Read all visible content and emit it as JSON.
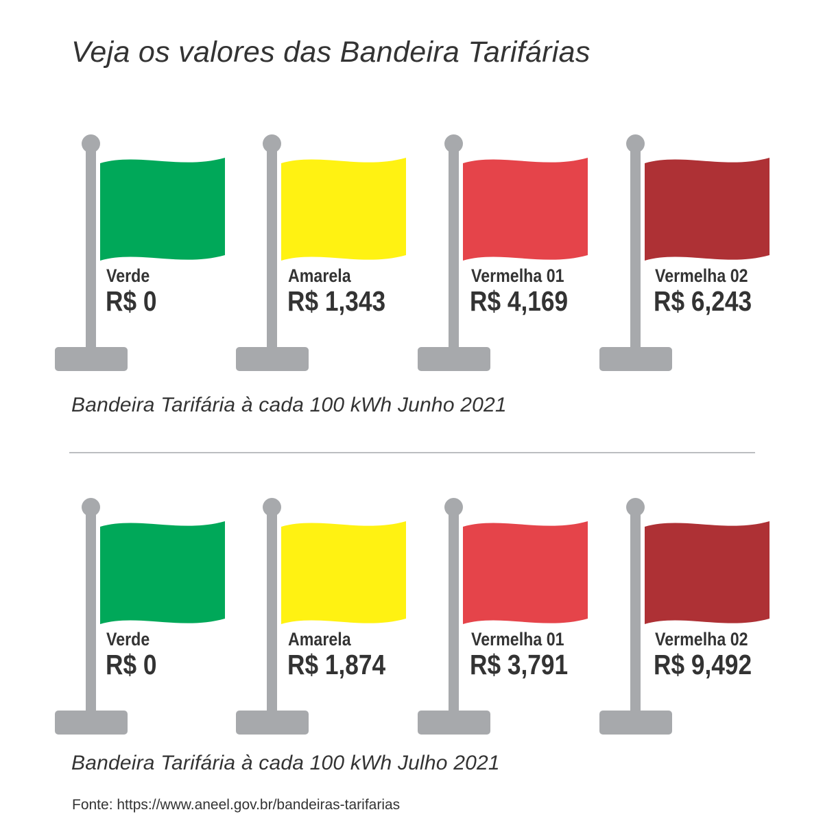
{
  "title": "Veja os valores das Bandeira Tarifárias",
  "colors": {
    "pole": "#a7a9ac",
    "verde": "#00a859",
    "amarela": "#fff212",
    "vermelha_01": "#e5444a",
    "vermelha_02": "#ae3135",
    "text": "#333333",
    "divider": "#bcbec0"
  },
  "sections": [
    {
      "caption": "Bandeira Tarifária à cada 100 kWh Junho 2021",
      "flags": [
        {
          "name": "Verde",
          "value": "R$ 0",
          "color": "#00a859"
        },
        {
          "name": "Amarela",
          "value": "R$ 1,343",
          "color": "#fff212"
        },
        {
          "name": "Vermelha 01",
          "value": "R$ 4,169",
          "color": "#e5444a"
        },
        {
          "name": "Vermelha 02",
          "value": "R$ 6,243",
          "color": "#ae3135"
        }
      ]
    },
    {
      "caption": "Bandeira Tarifária à cada 100 kWh Julho 2021",
      "flags": [
        {
          "name": "Verde",
          "value": "R$ 0",
          "color": "#00a859"
        },
        {
          "name": "Amarela",
          "value": "R$ 1,874",
          "color": "#fff212"
        },
        {
          "name": "Vermelha 01",
          "value": "R$ 3,791",
          "color": "#e5444a"
        },
        {
          "name": "Vermelha 02",
          "value": "R$ 9,492",
          "color": "#ae3135"
        }
      ]
    }
  ],
  "source": "Fonte: https://www.aneel.gov.br/bandeiras-tarifarias"
}
